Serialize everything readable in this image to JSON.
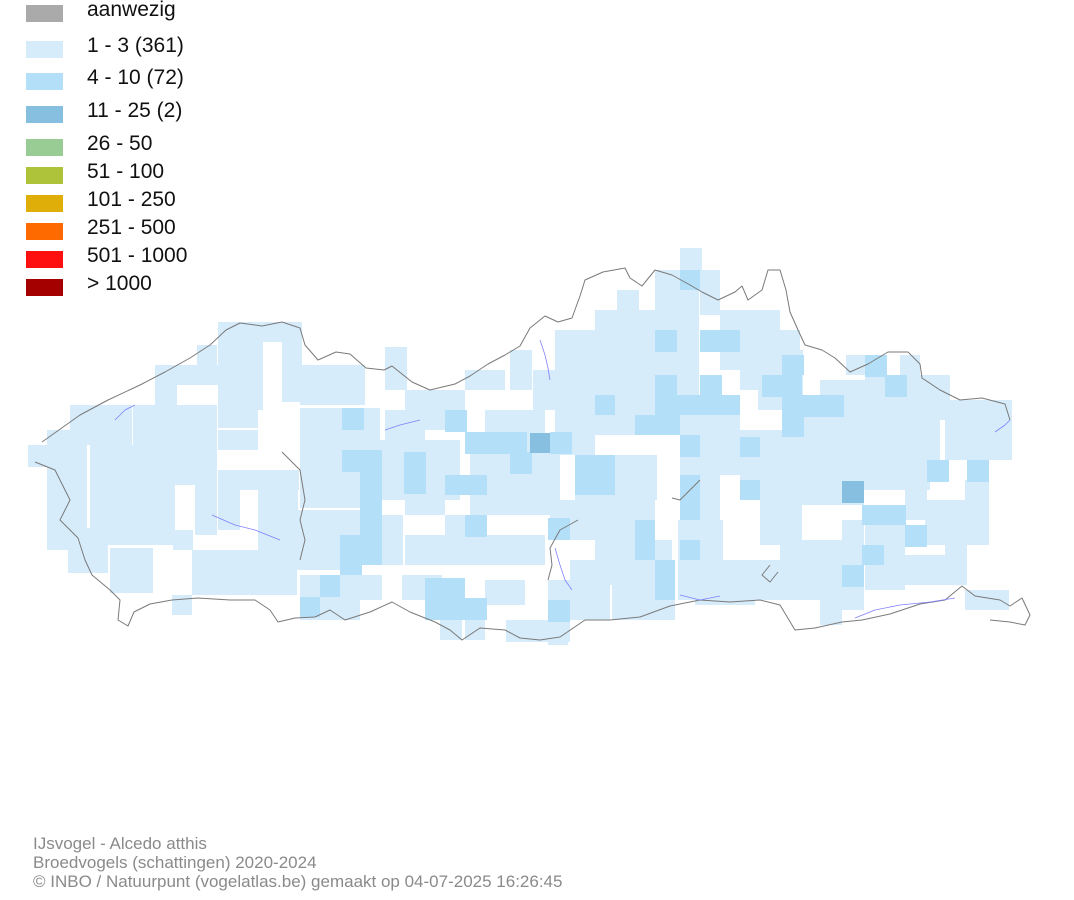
{
  "legend": {
    "items": [
      {
        "label": "aanwezig",
        "color": "#aaaaaa"
      },
      {
        "label": "1 - 3 (361)",
        "color": "#d6ecfa"
      },
      {
        "label": "4 - 10 (72)",
        "color": "#b3e0f8"
      },
      {
        "label": "11 - 25 (2)",
        "color": "#86bfdf"
      },
      {
        "label": "26 - 50",
        "color": "#98cc94"
      },
      {
        "label": "51 - 100",
        "color": "#aec33a"
      },
      {
        "label": "101 - 250",
        "color": "#e0ae08"
      },
      {
        "label": "251 - 500",
        "color": "#ff6a00"
      },
      {
        "label": "501 - 1000",
        "color": "#ff1010"
      },
      {
        "label": "> 1000",
        "color": "#a50000"
      }
    ]
  },
  "map": {
    "border_color": "#7a7a7a",
    "river_color": "#8080ff"
  },
  "footer": {
    "species": "IJsvogel - Alcedo atthis",
    "dataset": "Broedvogels (schattingen) 2020-2024",
    "credit": "© INBO / Natuurpunt (vogelatlas.be) gemaakt op 04-07-2025 16:26:45"
  }
}
